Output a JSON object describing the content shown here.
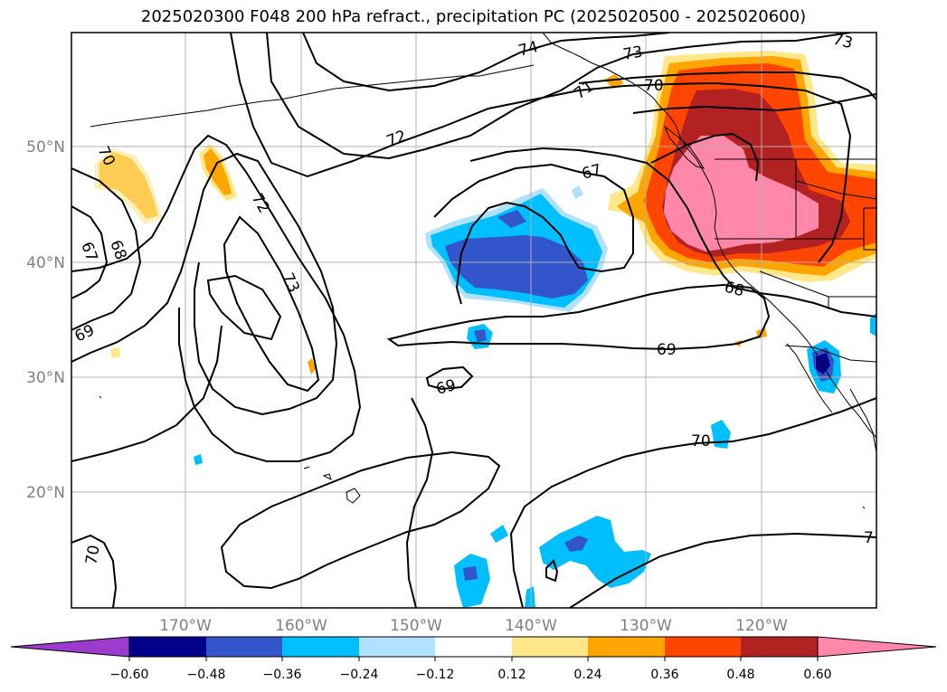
{
  "title": "2025020300 F048 200 hPa refract., precipitation PC (2025020500 - 2025020600)",
  "latitude_labels": [
    "50°N",
    "40°N",
    "30°N",
    "20°N"
  ],
  "longitude_labels": [
    "170°W",
    "160°W",
    "150°W",
    "140°W",
    "130°W",
    "120°W"
  ],
  "contour_labels": [
    "74",
    "73",
    "70",
    "71",
    "72",
    "67",
    "70",
    "67",
    "68",
    "73",
    "72",
    "69",
    "68",
    "69",
    "69",
    "70",
    "70",
    "7",
    "73"
  ],
  "colorbar": {
    "tick_labels": [
      "−0.60",
      "−0.48",
      "−0.36",
      "−0.24",
      "−0.12",
      "0.12",
      "0.24",
      "0.36",
      "0.48",
      "0.60"
    ],
    "colors": [
      "#9b3ccf",
      "#00008b",
      "#3355cc",
      "#00bfff",
      "#b0e2ff",
      "#ffffff",
      "#ffe78a",
      "#ffa500",
      "#ff4500",
      "#b22222",
      "#ff88aa"
    ]
  },
  "colors": {
    "precip_positive": [
      "#ffe78a",
      "#ffa500",
      "#ff4500",
      "#b22222",
      "#ff88aa"
    ],
    "precip_negative": [
      "#b0e2ff",
      "#00bfff",
      "#3355cc",
      "#00008b"
    ],
    "grid": "#b0b0b0",
    "contour": "#000000"
  }
}
